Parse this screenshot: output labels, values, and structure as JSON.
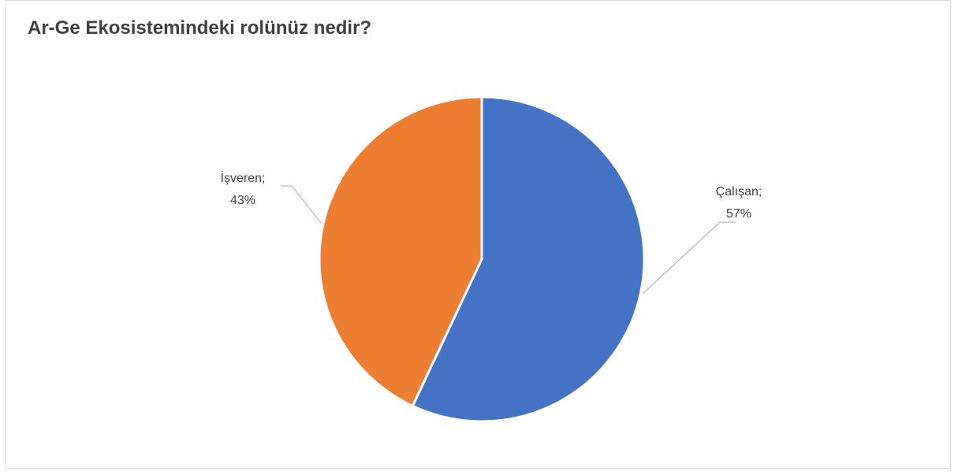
{
  "chart_data": {
    "type": "pie",
    "title": "Ar-Ge Ekosistemindeki rolünüz nedir?",
    "slices": [
      {
        "name": "Çalışan",
        "value": 57,
        "label_name": "Çalışan;",
        "label_value": "57%",
        "color": "#4472c4"
      },
      {
        "name": "İşveren",
        "value": 43,
        "label_name": "İşveren;",
        "label_value": "43%",
        "color": "#ed7d31"
      }
    ],
    "legend": "none"
  }
}
